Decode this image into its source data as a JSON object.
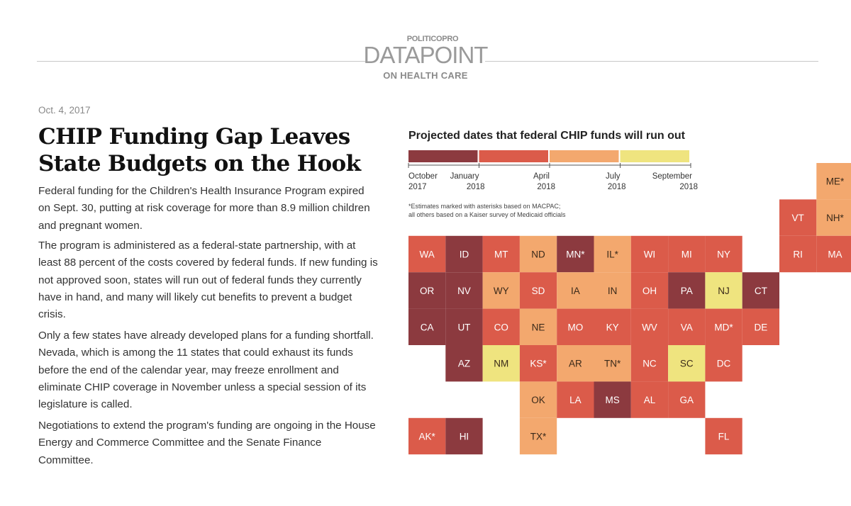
{
  "header": {
    "brand_top": "POLITICOPRO",
    "brand_main": "DATAPOINT",
    "brand_sub": "ON HEALTH CARE"
  },
  "article": {
    "date": "Oct. 4, 2017",
    "title": "CHIP Funding Gap Leaves State Budgets on the Hook",
    "paragraphs": [
      "Federal funding for the Children's Health Insurance Program expired on Sept. 30, putting at risk coverage for more than 8.9 million children and pregnant women.",
      "The program is administered as a federal-state partnership, with at least 88 percent of the costs covered by federal funds. If new funding is not approved soon, states will run out of federal funds they currently have in hand, and many will likely cut benefits to prevent a budget crisis.",
      "Only a few states have already developed plans for a funding shortfall. Nevada, which is among the 11 states that could exhaust its funds before the end of the calendar year, may freeze enrollment and eliminate CHIP coverage in November unless a special session of its legislature is called.",
      "Negotiations to extend the program's funding are ongoing in the House Energy and Commerce Committee and the Senate Finance Committee."
    ]
  },
  "chart_data": {
    "type": "heatmap",
    "title": "Projected dates that federal CHIP funds will run out",
    "note_lines": [
      "*Estimates marked with asterisks based on MACPAC;",
      "all others based on a Kaiser survey of Medicaid officials"
    ],
    "colors": {
      "c1": "#8c3a3f",
      "c2": "#db5b4a",
      "c3": "#f3a86e",
      "c4": "#efe47f"
    },
    "legend": {
      "bins": [
        {
          "id": "c1",
          "label": "October 2017 – January 2018"
        },
        {
          "id": "c2",
          "label": "January 2018 – April 2018"
        },
        {
          "id": "c3",
          "label": "April 2018 – July 2018"
        },
        {
          "id": "c4",
          "label": "July 2018 – September 2018"
        }
      ],
      "ticks": [
        {
          "line1": "October",
          "line2": "2017",
          "pos": 0
        },
        {
          "line1": "January",
          "line2": "2018",
          "pos": 0.25
        },
        {
          "line1": "April",
          "line2": "2018",
          "pos": 0.5
        },
        {
          "line1": "July",
          "line2": "2018",
          "pos": 0.75
        },
        {
          "line1": "September",
          "line2": "2018",
          "pos": 1
        }
      ]
    },
    "states": [
      {
        "abbr": "ME",
        "col": 11,
        "row": 0,
        "cls": "c3",
        "star": true
      },
      {
        "abbr": "VT",
        "col": 10,
        "row": 1,
        "cls": "c2",
        "star": false
      },
      {
        "abbr": "NH",
        "col": 11,
        "row": 1,
        "cls": "c3",
        "star": true
      },
      {
        "abbr": "WA",
        "col": 0,
        "row": 2,
        "cls": "c2",
        "star": false
      },
      {
        "abbr": "ID",
        "col": 1,
        "row": 2,
        "cls": "c1",
        "star": false
      },
      {
        "abbr": "MT",
        "col": 2,
        "row": 2,
        "cls": "c2",
        "star": false
      },
      {
        "abbr": "ND",
        "col": 3,
        "row": 2,
        "cls": "c3",
        "star": false
      },
      {
        "abbr": "MN",
        "col": 4,
        "row": 2,
        "cls": "c1",
        "star": true
      },
      {
        "abbr": "IL",
        "col": 5,
        "row": 2,
        "cls": "c3",
        "star": true
      },
      {
        "abbr": "WI",
        "col": 6,
        "row": 2,
        "cls": "c2",
        "star": false
      },
      {
        "abbr": "MI",
        "col": 7,
        "row": 2,
        "cls": "c2",
        "star": false
      },
      {
        "abbr": "NY",
        "col": 8,
        "row": 2,
        "cls": "c2",
        "star": false
      },
      {
        "abbr": "RI",
        "col": 10,
        "row": 2,
        "cls": "c2",
        "star": false
      },
      {
        "abbr": "MA",
        "col": 11,
        "row": 2,
        "cls": "c2",
        "star": false
      },
      {
        "abbr": "OR",
        "col": 0,
        "row": 3,
        "cls": "c1",
        "star": false
      },
      {
        "abbr": "NV",
        "col": 1,
        "row": 3,
        "cls": "c1",
        "star": false
      },
      {
        "abbr": "WY",
        "col": 2,
        "row": 3,
        "cls": "c3",
        "star": false
      },
      {
        "abbr": "SD",
        "col": 3,
        "row": 3,
        "cls": "c2",
        "star": false
      },
      {
        "abbr": "IA",
        "col": 4,
        "row": 3,
        "cls": "c3",
        "star": false
      },
      {
        "abbr": "IN",
        "col": 5,
        "row": 3,
        "cls": "c3",
        "star": false
      },
      {
        "abbr": "OH",
        "col": 6,
        "row": 3,
        "cls": "c2",
        "star": false
      },
      {
        "abbr": "PA",
        "col": 7,
        "row": 3,
        "cls": "c1",
        "star": false
      },
      {
        "abbr": "NJ",
        "col": 8,
        "row": 3,
        "cls": "c4",
        "star": false
      },
      {
        "abbr": "CT",
        "col": 9,
        "row": 3,
        "cls": "c1",
        "star": false
      },
      {
        "abbr": "CA",
        "col": 0,
        "row": 4,
        "cls": "c1",
        "star": false
      },
      {
        "abbr": "UT",
        "col": 1,
        "row": 4,
        "cls": "c1",
        "star": false
      },
      {
        "abbr": "CO",
        "col": 2,
        "row": 4,
        "cls": "c2",
        "star": false
      },
      {
        "abbr": "NE",
        "col": 3,
        "row": 4,
        "cls": "c3",
        "star": false
      },
      {
        "abbr": "MO",
        "col": 4,
        "row": 4,
        "cls": "c2",
        "star": false
      },
      {
        "abbr": "KY",
        "col": 5,
        "row": 4,
        "cls": "c2",
        "star": false
      },
      {
        "abbr": "WV",
        "col": 6,
        "row": 4,
        "cls": "c2",
        "star": false
      },
      {
        "abbr": "VA",
        "col": 7,
        "row": 4,
        "cls": "c2",
        "star": false
      },
      {
        "abbr": "MD",
        "col": 8,
        "row": 4,
        "cls": "c2",
        "star": true
      },
      {
        "abbr": "DE",
        "col": 9,
        "row": 4,
        "cls": "c2",
        "star": false
      },
      {
        "abbr": "AZ",
        "col": 1,
        "row": 5,
        "cls": "c1",
        "star": false
      },
      {
        "abbr": "NM",
        "col": 2,
        "row": 5,
        "cls": "c4",
        "star": false
      },
      {
        "abbr": "KS",
        "col": 3,
        "row": 5,
        "cls": "c2",
        "star": true
      },
      {
        "abbr": "AR",
        "col": 4,
        "row": 5,
        "cls": "c3",
        "star": false
      },
      {
        "abbr": "TN",
        "col": 5,
        "row": 5,
        "cls": "c3",
        "star": true
      },
      {
        "abbr": "NC",
        "col": 6,
        "row": 5,
        "cls": "c2",
        "star": false
      },
      {
        "abbr": "SC",
        "col": 7,
        "row": 5,
        "cls": "c4",
        "star": false
      },
      {
        "abbr": "DC",
        "col": 8,
        "row": 5,
        "cls": "c2",
        "star": false
      },
      {
        "abbr": "OK",
        "col": 3,
        "row": 6,
        "cls": "c3",
        "star": false
      },
      {
        "abbr": "LA",
        "col": 4,
        "row": 6,
        "cls": "c2",
        "star": false
      },
      {
        "abbr": "MS",
        "col": 5,
        "row": 6,
        "cls": "c1",
        "star": false
      },
      {
        "abbr": "AL",
        "col": 6,
        "row": 6,
        "cls": "c2",
        "star": false
      },
      {
        "abbr": "GA",
        "col": 7,
        "row": 6,
        "cls": "c2",
        "star": false
      },
      {
        "abbr": "AK",
        "col": 0,
        "row": 7,
        "cls": "c2",
        "star": true
      },
      {
        "abbr": "HI",
        "col": 1,
        "row": 7,
        "cls": "c1",
        "star": false
      },
      {
        "abbr": "TX",
        "col": 3,
        "row": 7,
        "cls": "c3",
        "star": true
      },
      {
        "abbr": "FL",
        "col": 8,
        "row": 7,
        "cls": "c2",
        "star": false
      }
    ]
  }
}
